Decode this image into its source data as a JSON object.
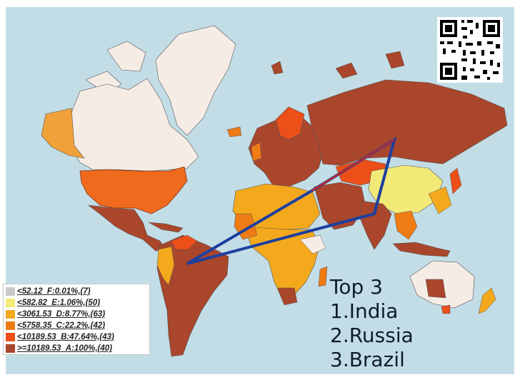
{
  "map": {
    "background_color": "#c3dde6",
    "legend": {
      "items": [
        {
          "label": "<52.12_F:0.01%,(7)",
          "color": "#c9c9c9"
        },
        {
          "label": "<582.82_E:1.06%,(50)",
          "color": "#f2ea77"
        },
        {
          "label": "<3061.53_D:8.77%,(63)",
          "color": "#f4a91c"
        },
        {
          "label": "<5758.35_C:22.2%,(42)",
          "color": "#ef7b14"
        },
        {
          "label": "<10189.53_B:47.64%,(43)",
          "color": "#ec4f18"
        },
        {
          "label": ">=10189.53_A:100%,(40)",
          "color": "#a9462b"
        }
      ]
    },
    "top3": {
      "heading": "Top 3",
      "items": [
        "1.India",
        "2.Russia",
        "3.Brazil"
      ]
    },
    "links_color": "#1c3fa0",
    "qr_icon": "qr-code-icon"
  }
}
